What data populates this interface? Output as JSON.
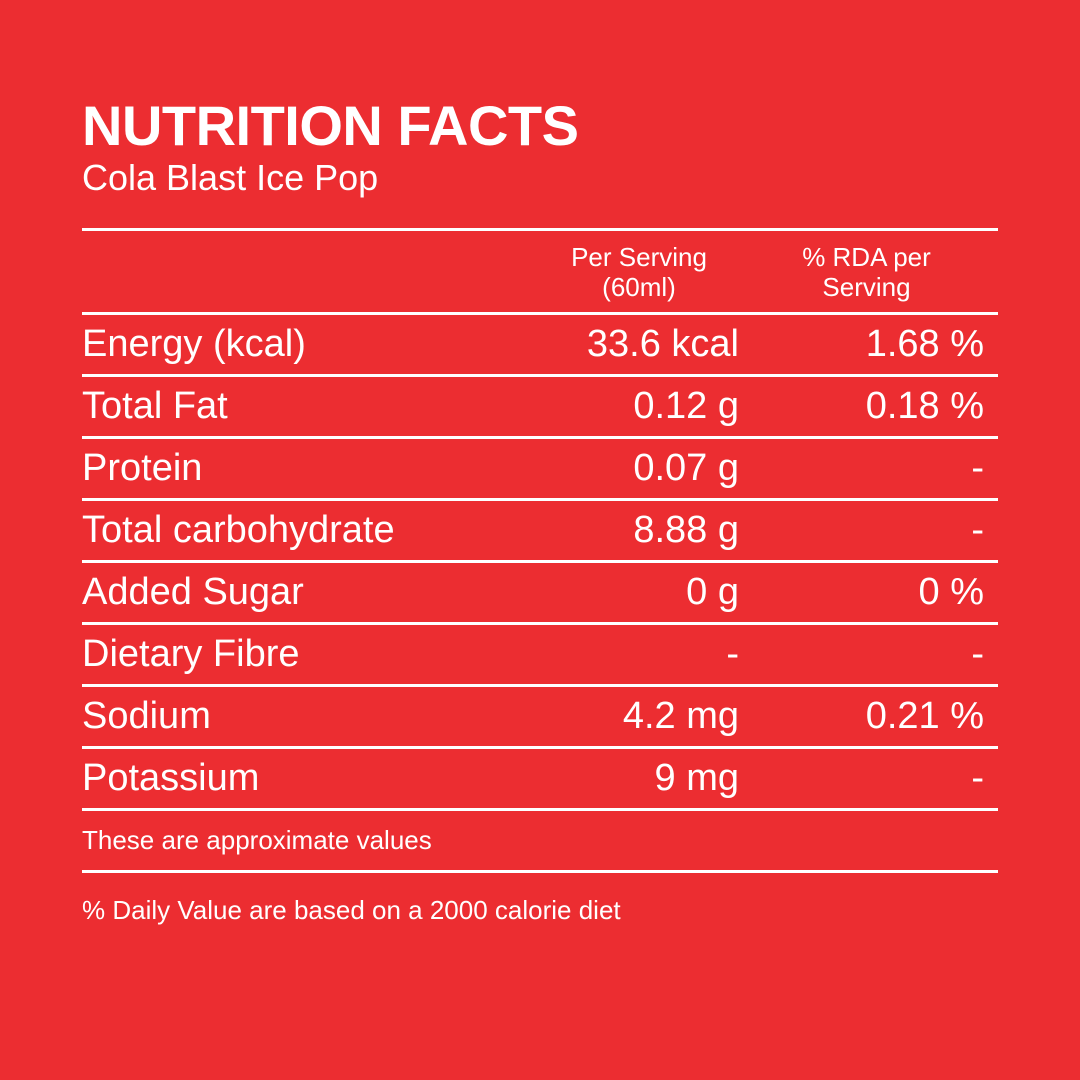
{
  "heading": {
    "title": "NUTRITION FACTS",
    "subtitle": "Cola Blast Ice Pop"
  },
  "table": {
    "header": {
      "serving_line1": "Per Serving",
      "serving_line2": "(60ml)",
      "rda_line1": "% RDA per",
      "rda_line2": "Serving"
    },
    "rows": [
      {
        "name": "Energy (kcal)",
        "serving": "33.6 kcal",
        "rda": "1.68 %"
      },
      {
        "name": "Total Fat",
        "serving": "0.12 g",
        "rda": "0.18 %"
      },
      {
        "name": "Protein",
        "serving": "0.07 g",
        "rda": "-"
      },
      {
        "name": "Total carbohydrate",
        "serving": "8.88 g",
        "rda": "-"
      },
      {
        "name": "Added Sugar",
        "serving": "0 g",
        "rda": "0 %"
      },
      {
        "name": "Dietary Fibre",
        "serving": "-",
        "rda": "-"
      },
      {
        "name": "Sodium",
        "serving": "4.2 mg",
        "rda": "0.21 %"
      },
      {
        "name": "Potassium",
        "serving": "9 mg",
        "rda": "-"
      }
    ]
  },
  "notes": {
    "approx": "These are approximate values",
    "daily_value": "%  Daily Value are based on a 2000 calorie diet"
  },
  "colors": {
    "background": "#ec2d31",
    "text": "#ffffff"
  }
}
